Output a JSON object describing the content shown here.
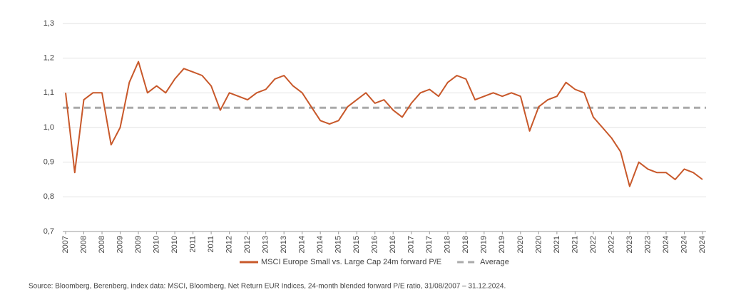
{
  "chart_data": {
    "type": "line",
    "categories": [
      "2007",
      null,
      "2008",
      null,
      "2008",
      null,
      "2009",
      null,
      "2009",
      null,
      "2010",
      null,
      "2010",
      null,
      "2011",
      null,
      "2011",
      null,
      "2012",
      null,
      "2012",
      null,
      "2013",
      null,
      "2013",
      null,
      "2014",
      null,
      "2014",
      null,
      "2015",
      null,
      "2015",
      null,
      "2016",
      null,
      "2016",
      null,
      "2017",
      null,
      "2017",
      null,
      "2018",
      null,
      "2018",
      null,
      "2019",
      null,
      "2019",
      null,
      "2020",
      null,
      "2020",
      null,
      "2021",
      null,
      "2021",
      null,
      "2022",
      null,
      "2022",
      null,
      "2023",
      null,
      "2023",
      null,
      "2024",
      null,
      "2024",
      null,
      "2024"
    ],
    "series": [
      {
        "name": "MSCI Europe Small vs. Large Cap 24m forward P/E",
        "color": "#c8582a",
        "values": [
          1.1,
          0.87,
          1.08,
          1.1,
          1.1,
          0.95,
          1.0,
          1.13,
          1.19,
          1.1,
          1.12,
          1.1,
          1.14,
          1.17,
          1.16,
          1.15,
          1.12,
          1.05,
          1.1,
          1.09,
          1.08,
          1.1,
          1.11,
          1.14,
          1.15,
          1.12,
          1.1,
          1.06,
          1.02,
          1.01,
          1.02,
          1.06,
          1.08,
          1.1,
          1.07,
          1.08,
          1.05,
          1.03,
          1.07,
          1.1,
          1.11,
          1.09,
          1.13,
          1.15,
          1.14,
          1.08,
          1.09,
          1.1,
          1.09,
          1.1,
          1.09,
          0.99,
          1.06,
          1.08,
          1.09,
          1.13,
          1.11,
          1.1,
          1.03,
          1.0,
          0.97,
          0.93,
          0.83,
          0.9,
          0.88,
          0.87,
          0.87,
          0.85,
          0.88,
          0.87,
          0.85
        ]
      }
    ],
    "reference_lines": [
      {
        "name": "Average",
        "value": 1.057,
        "color": "#aaaaaa",
        "dashed": true
      }
    ],
    "ylim": [
      0.7,
      1.3
    ],
    "yticks": [
      {
        "value": 0.7,
        "label": "0,7"
      },
      {
        "value": 0.8,
        "label": "0,8"
      },
      {
        "value": 0.9,
        "label": "0,9"
      },
      {
        "value": 1.0,
        "label": "1,0"
      },
      {
        "value": 1.1,
        "label": "1,1"
      },
      {
        "value": 1.2,
        "label": "1,2"
      },
      {
        "value": 1.3,
        "label": "1,3"
      }
    ],
    "grid": true,
    "source": "Source: Bloomberg, Berenberg, index data: MSCI, Bloomberg, Net Return EUR Indices, 24-month blended forward P/E ratio, 31/08/2007 – 31.12.2024."
  }
}
